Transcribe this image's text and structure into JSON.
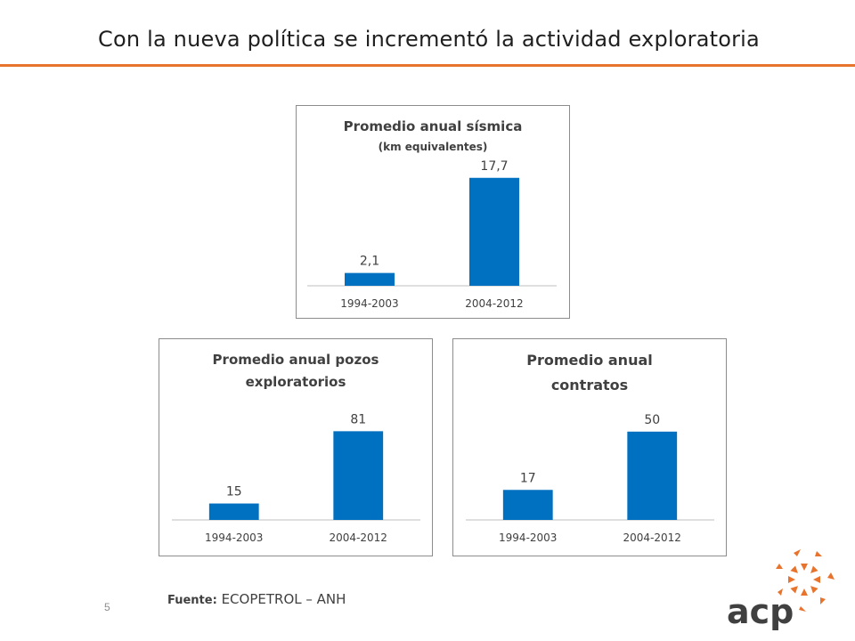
{
  "slide": {
    "title": "Con la nueva política se incrementó la actividad exploratoria",
    "page_number": "5",
    "source_label": "Fuente:",
    "source_text": "ECOPETROL – ANH",
    "logo_text": "acp",
    "accent_color": "#e8732c",
    "bar_color": "#0070c0"
  },
  "chart_data": [
    {
      "type": "bar",
      "title": "Promedio anual sísmica",
      "subtitle": "(km equivalentes)",
      "categories": [
        "1994-2003",
        "2004-2012"
      ],
      "values": [
        2.1,
        17.7
      ],
      "value_labels": [
        "2,1",
        "17,7"
      ],
      "ylim": [
        0,
        20
      ],
      "grid": false,
      "legend": "none"
    },
    {
      "type": "bar",
      "title": "Promedio anual pozos exploratorios",
      "title_lines": [
        "Promedio anual pozos",
        "exploratorios"
      ],
      "categories": [
        "1994-2003",
        "2004-2012"
      ],
      "values": [
        15,
        81
      ],
      "value_labels": [
        "15",
        "81"
      ],
      "ylim": [
        0,
        100
      ],
      "grid": false,
      "legend": "none"
    },
    {
      "type": "bar",
      "title": "Promedio anual contratos",
      "title_lines": [
        "Promedio anual",
        "contratos"
      ],
      "categories": [
        "1994-2003",
        "2004-2012"
      ],
      "values": [
        17,
        50
      ],
      "value_labels": [
        "17",
        "50"
      ],
      "ylim": [
        0,
        62
      ],
      "grid": false,
      "legend": "none"
    }
  ]
}
